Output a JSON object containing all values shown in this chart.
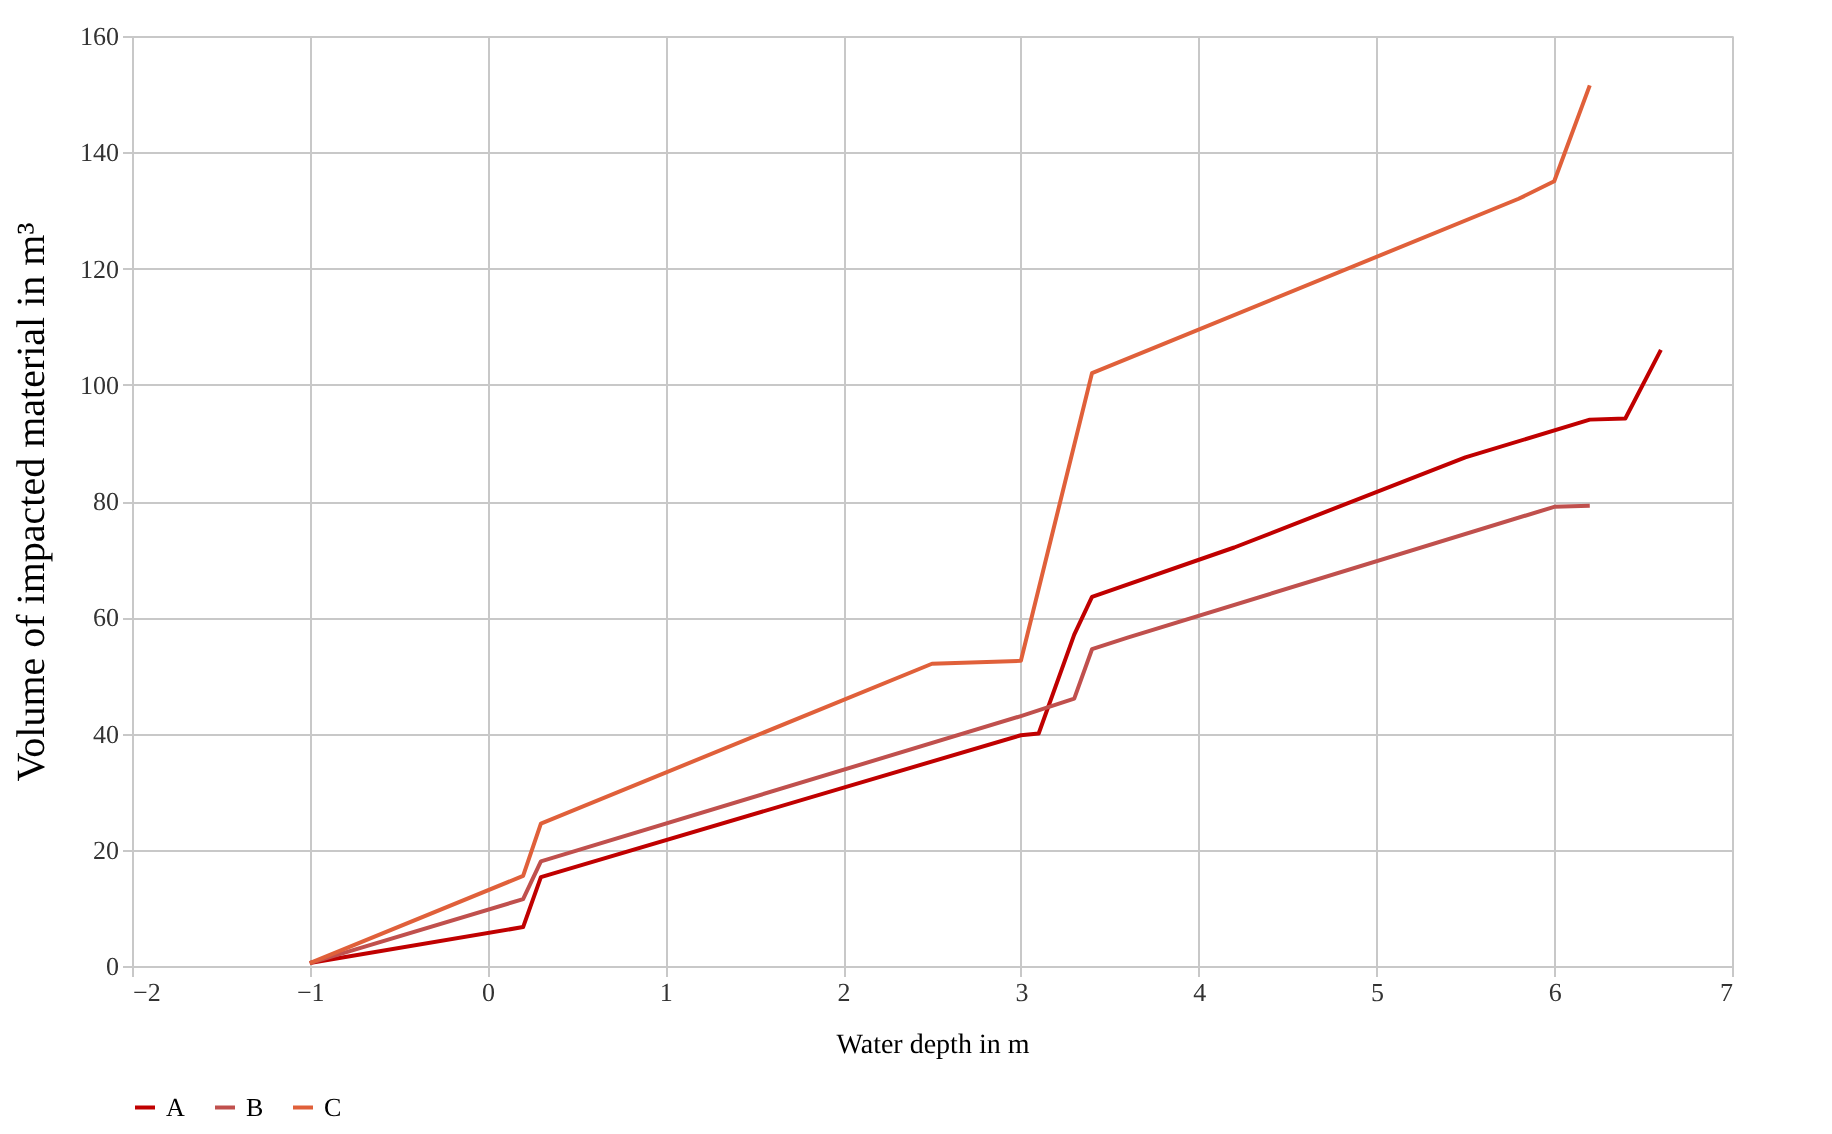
{
  "chart_data": {
    "type": "line",
    "xlabel": "Water depth in m",
    "ylabel": "Volume of impacted material in m³",
    "xlim": [
      -2,
      7
    ],
    "xticks": [
      -2,
      -1,
      0,
      1,
      2,
      3,
      4,
      5,
      6,
      7
    ],
    "ylim": [
      0,
      160
    ],
    "yticks": [
      0,
      20,
      40,
      60,
      80,
      100,
      120,
      140,
      160
    ],
    "grid": true,
    "legend": "bottom",
    "marker": "none",
    "line_style": "solid",
    "series": [
      {
        "name": "A",
        "color": "#c00000",
        "x": [
          -1,
          0.2,
          0.3,
          3,
          3.1,
          3.3,
          3.4,
          4.2,
          5.5,
          6.2,
          6.4,
          6.6
        ],
        "values": [
          0.5,
          6.7,
          15.3,
          39.7,
          40,
          57,
          63.5,
          72,
          87.5,
          94,
          94.2,
          106
        ]
      },
      {
        "name": "B",
        "color": "#c0504d",
        "x": [
          -1,
          0.2,
          0.3,
          3,
          3.3,
          3.4,
          3.6,
          6,
          6.2
        ],
        "values": [
          0.5,
          11.5,
          18,
          43,
          46,
          54.5,
          56.5,
          79,
          79.2
        ]
      },
      {
        "name": "C",
        "color": "#e0603a",
        "x": [
          -1,
          0.2,
          0.3,
          2.5,
          3,
          3.4,
          3.8,
          5.8,
          6,
          6.2
        ],
        "values": [
          0.5,
          15.5,
          24.5,
          52,
          52.5,
          102,
          107,
          132,
          135,
          151.5
        ]
      }
    ]
  }
}
